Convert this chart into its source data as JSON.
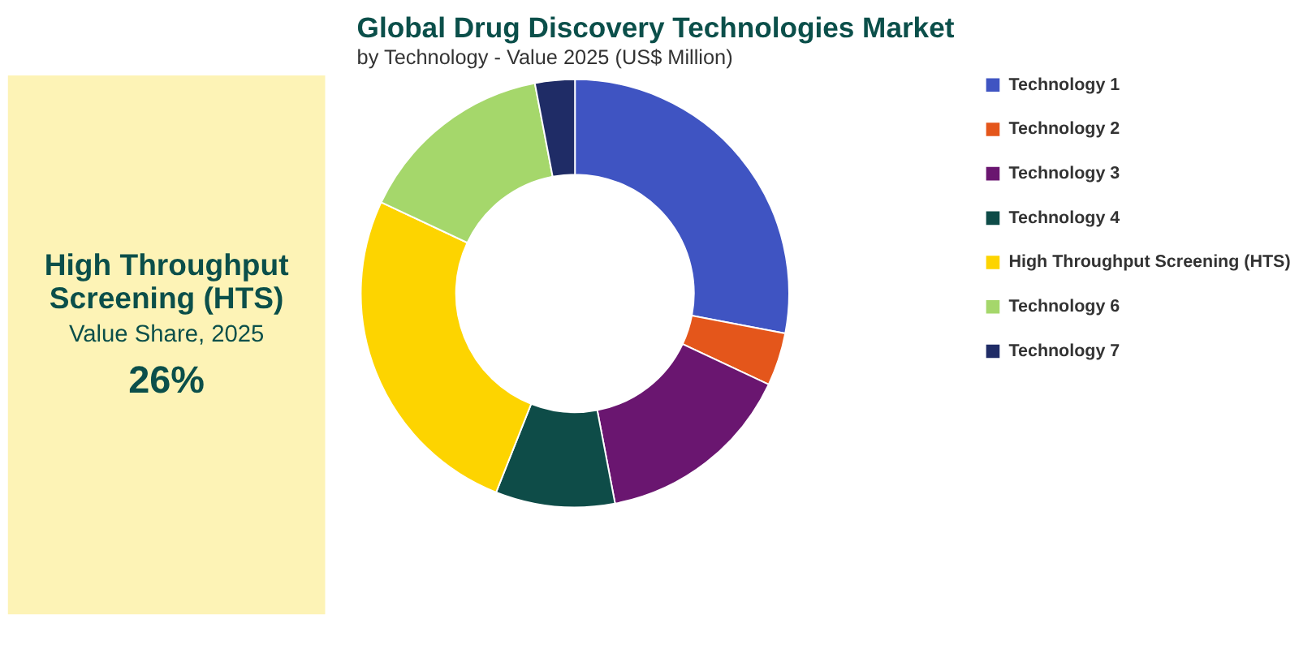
{
  "chart_data": {
    "type": "donut",
    "title": "Global Drug Discovery Technologies Market",
    "subtitle": "by Technology - Value 2025 (US$ Million)",
    "categories": [
      "Technology 1",
      "Technology 2",
      "Technology 3",
      "Technology 4",
      "High Throughput Screening (HTS)",
      "Technology 6",
      "Technology 7"
    ],
    "values": [
      28,
      4,
      15,
      9,
      26,
      15,
      3
    ],
    "colors": [
      "#3f54c2",
      "#e4561b",
      "#6a1670",
      "#0e4c48",
      "#fdd400",
      "#a5d76b",
      "#1f2c66"
    ],
    "legend": "right",
    "annotations": [
      "High Throughput Screening (HTS)",
      "Value Share, 2025",
      "26%"
    ]
  }
}
